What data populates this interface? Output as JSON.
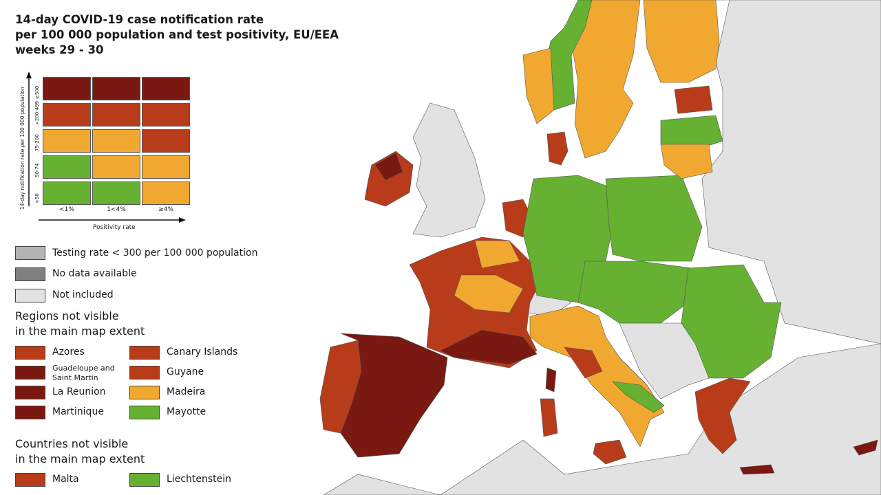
{
  "title": {
    "line1": "14-day COVID-19 case notification rate",
    "line2": "per 100 000 population and test positivity, EU/EEA",
    "line3": "weeks 29 - 30"
  },
  "colors": {
    "dark_red": "#7a1911",
    "red": "#b83c19",
    "orange": "#f0a830",
    "green": "#66b032",
    "testing_low": "#b3b3b3",
    "no_data": "#808080",
    "not_included": "#e2e2e2",
    "sea": "#ffffff"
  },
  "matrix": {
    "y_axis_label": "14-day notification rate per 100 000 population",
    "x_axis_label": "Positivity rate",
    "rows": [
      "≥500",
      ">200-499",
      "75-200",
      "50-74",
      "<50"
    ],
    "cols": [
      "<1%",
      "1<4%",
      "≥4%"
    ],
    "cells": [
      [
        "dark_red",
        "dark_red",
        "dark_red"
      ],
      [
        "red",
        "red",
        "red"
      ],
      [
        "orange",
        "orange",
        "red"
      ],
      [
        "green",
        "orange",
        "orange"
      ],
      [
        "green",
        "green",
        "orange"
      ]
    ]
  },
  "legend": {
    "testing_low": "Testing rate < 300 per 100 000 population",
    "no_data": "No data available",
    "not_included": "Not included"
  },
  "regions": {
    "heading1": "Regions not visible",
    "heading2": "in the main map extent",
    "items": [
      {
        "label": "Azores",
        "color": "red"
      },
      {
        "label": "Guadeloupe and Saint Martin",
        "color": "dark_red"
      },
      {
        "label": "La Reunion",
        "color": "dark_red"
      },
      {
        "label": "Martinique",
        "color": "dark_red"
      },
      {
        "label": "Canary Islands",
        "color": "red"
      },
      {
        "label": "Guyane",
        "color": "red"
      },
      {
        "label": "Madeira",
        "color": "orange"
      },
      {
        "label": "Mayotte",
        "color": "green"
      }
    ]
  },
  "countries": {
    "heading1": "Countries not visible",
    "heading2": "in the main map extent",
    "items": [
      {
        "label": "Malta",
        "color": "red"
      },
      {
        "label": "Liechtenstein",
        "color": "green"
      }
    ]
  }
}
